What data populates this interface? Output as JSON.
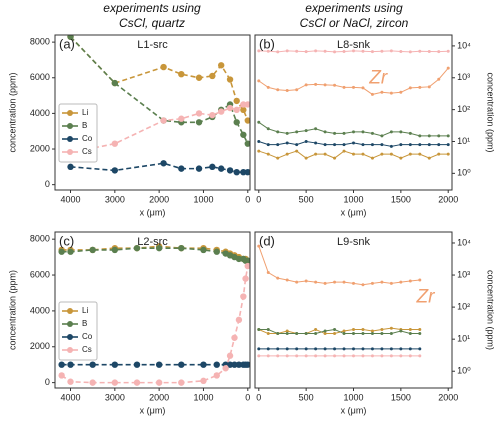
{
  "column_titles": [
    [
      "experiments using",
      "CsCl, quartz"
    ],
    [
      "experiments using",
      "CsCl or NaCl, zircon"
    ]
  ],
  "chart_data": [
    {
      "type": "line",
      "label": "(a)",
      "title": "L1-src",
      "xlabel": "x (μm)",
      "ylabel": "concentration (ppm)",
      "xlim": [
        4350,
        -50
      ],
      "xticks": [
        4000,
        3000,
        2000,
        1000,
        0
      ],
      "ylim": [
        -300,
        8400
      ],
      "yticks": [
        0,
        2000,
        4000,
        6000,
        8000
      ],
      "yaxis_side": "left",
      "linestyle": "dashed",
      "legend": "lower left",
      "x": [
        4000,
        3000,
        1900,
        1500,
        1100,
        800,
        600,
        400,
        250,
        100,
        0
      ],
      "series": [
        {
          "name": "Li",
          "color": "#c8963a",
          "values": [
            8300,
            5700,
            6600,
            6200,
            6000,
            6100,
            6700,
            5900,
            4700,
            4200,
            3600
          ]
        },
        {
          "name": "B",
          "color": "#5b7f4f",
          "values": [
            8300,
            5700,
            3600,
            3500,
            3500,
            3800,
            4200,
            4500,
            3500,
            2800,
            2300
          ]
        },
        {
          "name": "Co",
          "color": "#1d4766",
          "values": [
            1000,
            800,
            1200,
            900,
            900,
            1000,
            900,
            800,
            700,
            700,
            700
          ]
        },
        {
          "name": "Cs",
          "color": "#f5b3b3",
          "values": [
            1800,
            2300,
            3600,
            3700,
            4000,
            3900,
            4100,
            4300,
            4200,
            4500,
            4500
          ]
        }
      ]
    },
    {
      "type": "line",
      "label": "(b)",
      "title": "L8-snk",
      "xlabel": "x (μm)",
      "ylabel": "concentration (ppm)",
      "xlim": [
        -40,
        2040
      ],
      "xticks": [
        0,
        500,
        1000,
        1500,
        2000
      ],
      "ylim": [
        0.3,
        22000
      ],
      "yscale": "log",
      "yticks": [
        {
          "value": 1,
          "label": "10⁰"
        },
        {
          "value": 10,
          "label": "10¹"
        },
        {
          "value": 100,
          "label": "10²"
        },
        {
          "value": 1000,
          "label": "10³"
        },
        {
          "value": 10000,
          "label": "10⁴"
        }
      ],
      "yaxis_side": "right",
      "linestyle": "solid",
      "x": [
        0,
        100,
        200,
        300,
        400,
        500,
        600,
        700,
        800,
        900,
        1000,
        1100,
        1200,
        1300,
        1400,
        1500,
        1600,
        1700,
        1800,
        1900,
        2000
      ],
      "series": [
        {
          "color": "#f5b3b3",
          "values": [
            7000,
            6800,
            6500,
            7000,
            6800,
            6600,
            7000,
            6800,
            6500,
            6700,
            7000,
            6800,
            6600,
            6800,
            7000,
            6700,
            6500,
            6800,
            6700,
            6600,
            6800
          ]
        },
        {
          "name": "Zr",
          "color": "#f0a070",
          "values": [
            800,
            500,
            420,
            400,
            420,
            600,
            620,
            600,
            580,
            500,
            500,
            480,
            300,
            350,
            330,
            350,
            480,
            500,
            520,
            900,
            2000
          ]
        },
        {
          "color": "#5b7f4f",
          "values": [
            40,
            25,
            20,
            18,
            20,
            22,
            25,
            20,
            18,
            18,
            20,
            20,
            18,
            15,
            20,
            20,
            18,
            15,
            15,
            15,
            15
          ]
        },
        {
          "color": "#1d4766",
          "values": [
            10,
            8,
            8,
            9,
            8,
            10,
            9,
            8,
            8,
            8,
            9,
            8,
            8,
            8,
            7,
            8,
            8,
            8,
            8,
            8,
            8
          ]
        },
        {
          "color": "#c8963a",
          "values": [
            5,
            4,
            3,
            4,
            5,
            3,
            4,
            4,
            3,
            5,
            4,
            4,
            3,
            4,
            4,
            3,
            4,
            4,
            3,
            4,
            4
          ]
        }
      ]
    },
    {
      "type": "line",
      "label": "(c)",
      "title": "L2-src",
      "xlabel": "x (μm)",
      "ylabel": "concentration (ppm)",
      "xlim": [
        4350,
        -50
      ],
      "xticks": [
        4000,
        3000,
        2000,
        1000,
        0
      ],
      "ylim": [
        -300,
        8400
      ],
      "yticks": [
        0,
        2000,
        4000,
        6000,
        8000
      ],
      "yaxis_side": "left",
      "linestyle": "dashed",
      "legend": "lower left",
      "x": [
        4200,
        4000,
        3500,
        3000,
        2500,
        2000,
        1500,
        1000,
        700,
        500,
        400,
        300,
        200,
        100,
        50,
        0
      ],
      "series": [
        {
          "name": "Li",
          "color": "#c8963a",
          "values": [
            7400,
            7400,
            7400,
            7500,
            7500,
            7600,
            7500,
            7500,
            7400,
            7300,
            7200,
            7100,
            7000,
            6900,
            6900,
            6800
          ]
        },
        {
          "name": "B",
          "color": "#5b7f4f",
          "values": [
            7300,
            7300,
            7400,
            7400,
            7500,
            7500,
            7500,
            7400,
            7300,
            7200,
            7100,
            7000,
            6900,
            6900,
            6800,
            6800
          ]
        },
        {
          "name": "Co",
          "color": "#1d4766",
          "values": [
            1000,
            1000,
            1000,
            1000,
            1000,
            1000,
            1000,
            1000,
            1000,
            1000,
            1000,
            1000,
            1000,
            1000,
            1000,
            1000
          ]
        },
        {
          "name": "Cs",
          "color": "#f5b3b3",
          "values": [
            400,
            50,
            0,
            0,
            0,
            0,
            0,
            100,
            400,
            800,
            1500,
            2500,
            3500,
            4800,
            5800,
            6500
          ]
        }
      ]
    },
    {
      "type": "line",
      "label": "(d)",
      "title": "L9-snk",
      "xlabel": "x (μm)",
      "ylabel": "concentration (ppm)",
      "xlim": [
        -40,
        2040
      ],
      "xticks": [
        0,
        500,
        1000,
        1500,
        2000
      ],
      "ylim": [
        0.3,
        22000
      ],
      "yscale": "log",
      "yticks": [
        {
          "value": 1,
          "label": "10⁰"
        },
        {
          "value": 10,
          "label": "10¹"
        },
        {
          "value": 100,
          "label": "10²"
        },
        {
          "value": 1000,
          "label": "10³"
        },
        {
          "value": 10000,
          "label": "10⁴"
        }
      ],
      "yaxis_side": "right",
      "linestyle": "solid",
      "x": [
        0,
        100,
        200,
        300,
        400,
        500,
        600,
        700,
        800,
        900,
        1000,
        1100,
        1200,
        1300,
        1400,
        1500,
        1600,
        1700
      ],
      "series": [
        {
          "name": "Zr",
          "color": "#f0a070",
          "values": [
            8000,
            1200,
            800,
            700,
            600,
            650,
            600,
            550,
            600,
            600,
            550,
            500,
            550,
            600,
            550,
            600,
            650,
            700
          ]
        },
        {
          "color": "#c8963a",
          "values": [
            20,
            15,
            15,
            18,
            15,
            15,
            20,
            15,
            15,
            18,
            20,
            20,
            18,
            20,
            22,
            20,
            20,
            20
          ]
        },
        {
          "color": "#5b7f4f",
          "values": [
            20,
            20,
            15,
            15,
            15,
            15,
            15,
            18,
            20,
            15,
            15,
            15,
            15,
            15,
            15,
            18,
            15,
            15
          ]
        },
        {
          "color": "#1d4766",
          "values": [
            5,
            5,
            5,
            5,
            5,
            5,
            5,
            5,
            5,
            5,
            5,
            5,
            5,
            5,
            5,
            5,
            5,
            5
          ]
        },
        {
          "color": "#f5b3b3",
          "values": [
            3,
            3,
            3,
            3,
            3,
            3,
            3,
            3,
            3,
            3,
            3,
            3,
            3,
            3,
            3,
            3,
            3,
            3
          ]
        }
      ]
    }
  ]
}
